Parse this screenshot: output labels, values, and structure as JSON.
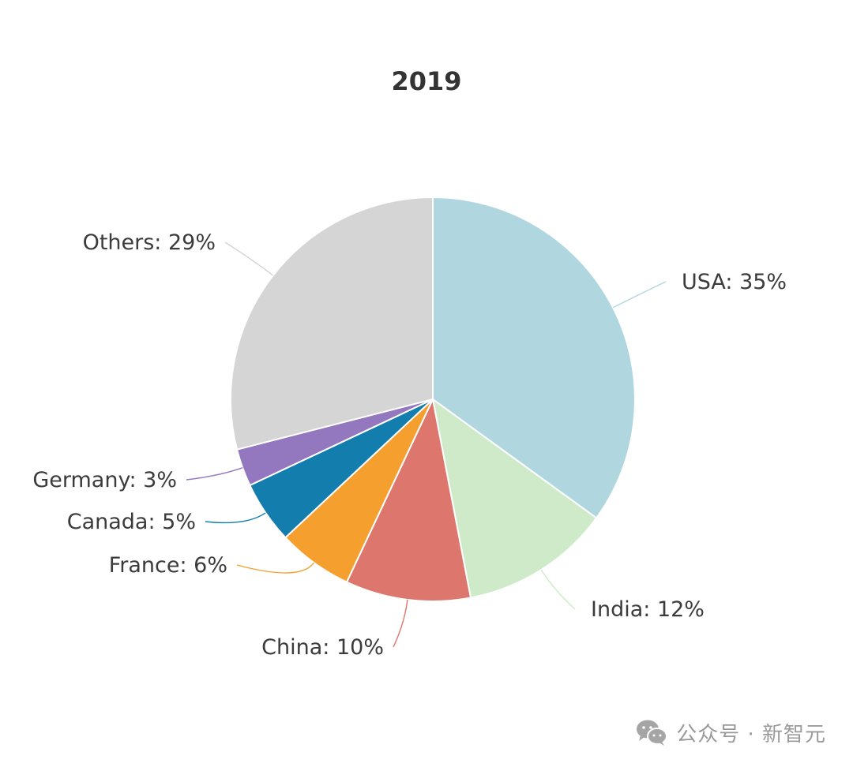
{
  "chart_data": {
    "type": "pie",
    "title": "2019",
    "slices": [
      {
        "label": "USA",
        "value": 35,
        "display": "USA: 35%",
        "color": "#b0d7df"
      },
      {
        "label": "India",
        "value": 12,
        "display": "India: 12%",
        "color": "#ceeac8"
      },
      {
        "label": "China",
        "value": 10,
        "display": "China: 10%",
        "color": "#dd766c"
      },
      {
        "label": "France",
        "value": 6,
        "display": "France: 6%",
        "color": "#f59f2f"
      },
      {
        "label": "Canada",
        "value": 5,
        "display": "Canada: 5%",
        "color": "#137ead"
      },
      {
        "label": "Germany",
        "value": 3,
        "display": "Germany: 3%",
        "color": "#9478bf"
      },
      {
        "label": "Others",
        "value": 29,
        "display": "Others: 29%",
        "color": "#d5d5d5"
      }
    ],
    "start": "12 o'clock",
    "direction": "clockwise",
    "unit": "%"
  },
  "watermark": {
    "icon": "wechat-icon",
    "text": "公众号 · 新智元"
  }
}
